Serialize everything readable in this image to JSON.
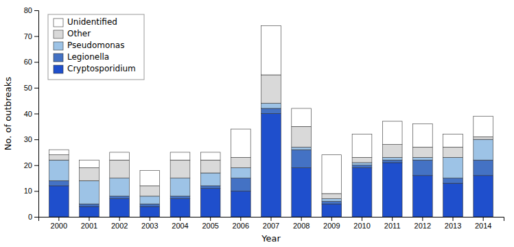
{
  "chart_data": {
    "type": "bar",
    "stacked": true,
    "xlabel": "Year",
    "ylabel": "No. of outbreaks",
    "categories": [
      "2000",
      "2001",
      "2002",
      "2003",
      "2004",
      "2005",
      "2006",
      "2007",
      "2008",
      "2009",
      "2010",
      "2011",
      "2012",
      "2013",
      "2014"
    ],
    "series": [
      {
        "name": "Cryptosporidium",
        "color": "#1F4FCC",
        "values": [
          12,
          4,
          7,
          4,
          7,
          11,
          10,
          40,
          19,
          5,
          19,
          21,
          16,
          13,
          16
        ]
      },
      {
        "name": "Legionella",
        "color": "#4472C4",
        "values": [
          2,
          1,
          1,
          1,
          1,
          1,
          5,
          2,
          7,
          1,
          1,
          1,
          6,
          2,
          6
        ]
      },
      {
        "name": "Pseudomonas",
        "color": "#9DC3E6",
        "values": [
          8,
          9,
          7,
          3,
          7,
          5,
          4,
          2,
          1,
          1,
          1,
          1,
          1,
          8,
          8
        ]
      },
      {
        "name": "Other",
        "color": "#D9D9D9",
        "values": [
          2,
          5,
          7,
          4,
          7,
          5,
          4,
          11,
          8,
          2,
          2,
          5,
          4,
          4,
          1
        ]
      },
      {
        "name": "Unidentified",
        "color": "#FFFFFF",
        "values": [
          2,
          3,
          3,
          6,
          3,
          3,
          11,
          19,
          7,
          15,
          9,
          9,
          9,
          5,
          8
        ]
      }
    ],
    "ylim": [
      0,
      80
    ],
    "yticks": [
      0,
      10,
      20,
      30,
      40,
      50,
      60,
      70,
      80
    ],
    "grid": false,
    "legend": "upper left"
  }
}
